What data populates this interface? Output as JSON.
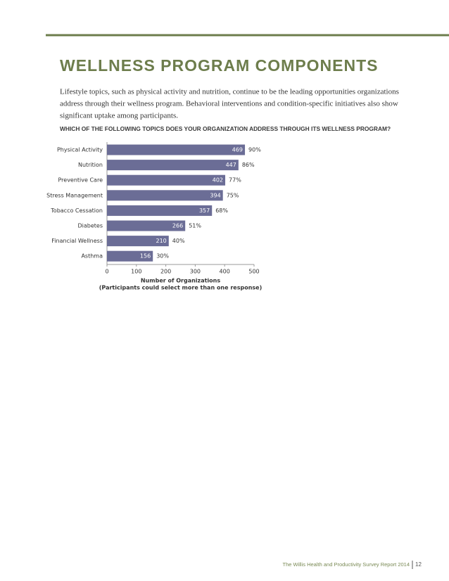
{
  "header": {
    "title": "WELLNESS PROGRAM COMPONENTS"
  },
  "intro": [
    "Lifestyle topics, such as physical activity and nutrition, continue to be the leading opportunities organizations",
    "address through their wellness program. Behavioral interventions and condition-specific initiatives also show",
    "significant uptake among participants."
  ],
  "question": "WHICH OF THE FOLLOWING TOPICS DOES YOUR ORGANIZATION ADDRESS THROUGH ITS WELLNESS PROGRAM?",
  "chart_data": {
    "type": "hbar",
    "categories": [
      "Physical Activity",
      "Nutrition",
      "Preventive Care",
      "Stress Management",
      "Tobacco Cessation",
      "Diabetes",
      "Financial Wellness",
      "Asthma"
    ],
    "values": [
      469,
      447,
      402,
      394,
      357,
      266,
      210,
      156
    ],
    "percent_labels": [
      "90%",
      "86%",
      "77%",
      "75%",
      "68%",
      "51%",
      "40%",
      "30%"
    ],
    "color": "#6b6d96",
    "xlim": [
      0,
      500
    ],
    "xticks": [
      0,
      100,
      200,
      300,
      400,
      500
    ],
    "xlabel": [
      "Number of Organizations",
      "(Participants could select more than one response)"
    ]
  },
  "footer": {
    "report": "The Willis Health and Productivity Survey Report 2014",
    "page": "12"
  }
}
